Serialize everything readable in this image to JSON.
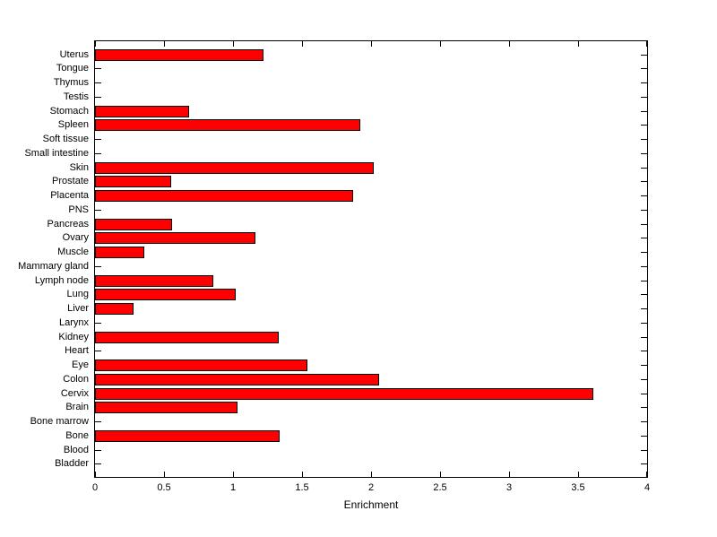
{
  "chart_data": {
    "type": "bar",
    "orientation": "horizontal",
    "title": "",
    "xlabel": "Enrichment",
    "ylabel": "",
    "xlim": [
      0,
      4
    ],
    "xticks": [
      0,
      0.5,
      1,
      1.5,
      2,
      2.5,
      3,
      3.5,
      4
    ],
    "xtick_labels": [
      "0",
      "0.5",
      "1",
      "1.5",
      "2",
      "2.5",
      "3",
      "3.5",
      "4"
    ],
    "grid": false,
    "legend_position": "none",
    "bar_color": "#ff0000",
    "bar_edge_color": "#000000",
    "axis_color": "#000000",
    "background_color": "#ffffff",
    "categories": [
      "Uterus",
      "Tongue",
      "Thymus",
      "Testis",
      "Stomach",
      "Spleen",
      "Soft tissue",
      "Small intestine",
      "Skin",
      "Prostate",
      "Placenta",
      "PNS",
      "Pancreas",
      "Ovary",
      "Muscle",
      "Mammary gland",
      "Lymph node",
      "Lung",
      "Liver",
      "Larynx",
      "Kidney",
      "Heart",
      "Eye",
      "Colon",
      "Cervix",
      "Brain",
      "Bone marrow",
      "Bone",
      "Blood",
      "Bladder"
    ],
    "values": [
      1.22,
      0,
      0,
      0,
      0.68,
      1.92,
      0,
      0,
      2.02,
      0.55,
      1.87,
      0,
      0.56,
      1.16,
      0.36,
      0,
      0.86,
      1.02,
      0.28,
      0,
      1.33,
      0,
      1.54,
      2.06,
      3.61,
      1.03,
      0,
      1.34,
      0,
      0
    ]
  }
}
